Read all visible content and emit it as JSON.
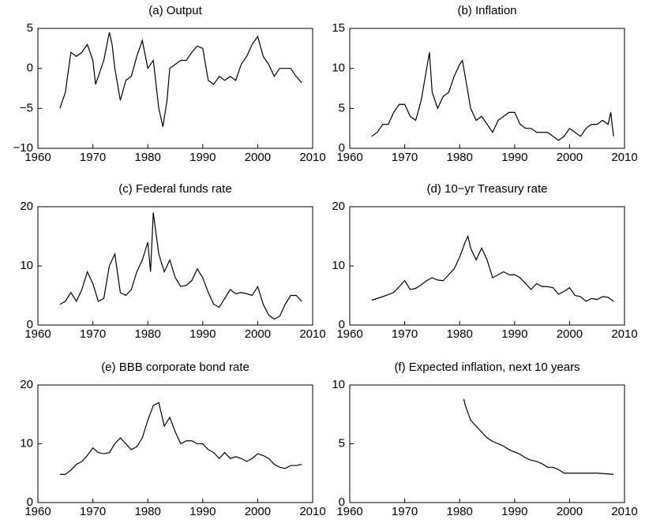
{
  "chart_data": [
    {
      "type": "line",
      "title": "(a) Output",
      "color": "#000000",
      "x": [
        1964,
        1964.5,
        1965,
        1966,
        1967,
        1968,
        1969,
        1970,
        1970.5,
        1971,
        1972,
        1973,
        1973.5,
        1974,
        1975,
        1976,
        1977,
        1978,
        1979,
        1980,
        1981,
        1982,
        1982.75,
        1983.5,
        1984,
        1985,
        1986,
        1987,
        1988,
        1989,
        1990,
        1991,
        1992,
        1993,
        1994,
        1995,
        1996,
        1997,
        1998,
        1999,
        2000,
        2001,
        2002,
        2003,
        2004,
        2005,
        2006,
        2007,
        2008
      ],
      "values": [
        -5,
        -4,
        -3,
        2,
        1.5,
        2,
        3,
        1,
        -2,
        -1,
        1,
        4.5,
        3,
        0,
        -4,
        -1.5,
        -1,
        1.5,
        3.5,
        0,
        1,
        -5,
        -7.3,
        -4,
        0,
        0.5,
        1,
        1,
        2,
        2.8,
        2.5,
        -1.5,
        -2,
        -1,
        -1.5,
        -1,
        -1.5,
        0.5,
        1.5,
        3,
        4,
        1.5,
        0.5,
        -1,
        0,
        0,
        0,
        -1,
        -1.8
      ],
      "xlim": [
        1960,
        2010
      ],
      "xticks": [
        1960,
        1970,
        1980,
        1990,
        2000,
        2010
      ],
      "ylim": [
        -10,
        5
      ],
      "yticks": [
        {
          "value": -10,
          "label": "−10"
        },
        {
          "value": -5,
          "label": "−5"
        },
        0,
        5
      ]
    },
    {
      "type": "line",
      "title": "(b) Inflation",
      "color": "#000000",
      "x": [
        1964,
        1965,
        1966,
        1967,
        1968,
        1969,
        1970,
        1971,
        1972,
        1973,
        1974,
        1974.5,
        1975,
        1976,
        1977,
        1978,
        1979,
        1980,
        1980.5,
        1981,
        1982,
        1983,
        1984,
        1985,
        1986,
        1987,
        1988,
        1989,
        1990,
        1991,
        1992,
        1993,
        1994,
        1995,
        1996,
        1997,
        1998,
        1999,
        2000,
        2001,
        2002,
        2003,
        2004,
        2005,
        2006,
        2007,
        2007.5,
        2008
      ],
      "values": [
        1.5,
        2,
        3,
        3,
        4.5,
        5.5,
        5.5,
        4,
        3.5,
        6,
        10,
        12,
        7,
        5,
        6.5,
        7,
        9,
        10.5,
        11,
        9,
        5,
        3.5,
        4,
        3,
        2,
        3.5,
        4,
        4.5,
        4.5,
        3,
        2.5,
        2.5,
        2,
        2,
        2,
        1.5,
        1,
        1.5,
        2.5,
        2,
        1.5,
        2.5,
        3,
        3,
        3.5,
        3,
        4.5,
        1.5
      ],
      "xlim": [
        1960,
        2010
      ],
      "xticks": [
        1960,
        1970,
        1980,
        1990,
        2000,
        2010
      ],
      "ylim": [
        0,
        15
      ],
      "yticks": [
        0,
        5,
        10,
        15
      ]
    },
    {
      "type": "line",
      "title": "(c) Federal funds rate",
      "color": "#000000",
      "x": [
        1964,
        1965,
        1966,
        1967,
        1968,
        1969,
        1970,
        1971,
        1972,
        1973,
        1974,
        1975,
        1976,
        1977,
        1978,
        1979,
        1980,
        1980.5,
        1981,
        1982,
        1983,
        1984,
        1985,
        1986,
        1987,
        1988,
        1989,
        1990,
        1991,
        1992,
        1993,
        1994,
        1995,
        1996,
        1997,
        1998,
        1999,
        2000,
        2001,
        2002,
        2003,
        2004,
        2005,
        2006,
        2007,
        2008
      ],
      "values": [
        3.5,
        4,
        5.5,
        4,
        6,
        9,
        7,
        4,
        4.5,
        10,
        12,
        5.5,
        5,
        6,
        9,
        11,
        14,
        9,
        19,
        12,
        9,
        11,
        8,
        6.5,
        6.7,
        7.5,
        9.5,
        8,
        5.5,
        3.5,
        3,
        4.5,
        6,
        5.3,
        5.5,
        5.3,
        5,
        6.5,
        3.5,
        1.7,
        1,
        1.5,
        3.5,
        5,
        5,
        4
      ],
      "xlim": [
        1960,
        2010
      ],
      "xticks": [
        1960,
        1970,
        1980,
        1990,
        2000,
        2010
      ],
      "ylim": [
        0,
        20
      ],
      "yticks": [
        0,
        10,
        20
      ]
    },
    {
      "type": "line",
      "title": "(d) 10−yr Treasury rate",
      "color": "#000000",
      "x": [
        1964,
        1966,
        1968,
        1969,
        1970,
        1971,
        1972,
        1973,
        1974,
        1975,
        1976,
        1977,
        1978,
        1979,
        1980,
        1981,
        1981.5,
        1982,
        1983,
        1984,
        1985,
        1986,
        1987,
        1988,
        1989,
        1990,
        1991,
        1992,
        1993,
        1994,
        1995,
        1996,
        1997,
        1998,
        1999,
        2000,
        2001,
        2002,
        2003,
        2004,
        2005,
        2006,
        2007,
        2008
      ],
      "values": [
        4.2,
        4.8,
        5.5,
        6.5,
        7.5,
        6,
        6.2,
        6.8,
        7.5,
        8,
        7.6,
        7.5,
        8.5,
        9.5,
        11.5,
        14,
        15,
        13,
        11,
        13,
        11,
        8,
        8.5,
        9,
        8.5,
        8.5,
        8,
        7,
        6,
        7,
        6.5,
        6.5,
        6.3,
        5.2,
        5.7,
        6.3,
        5,
        4.8,
        4,
        4.5,
        4.3,
        4.8,
        4.7,
        4
      ],
      "xlim": [
        1960,
        2010
      ],
      "xticks": [
        1960,
        1970,
        1980,
        1990,
        2000,
        2010
      ],
      "ylim": [
        0,
        20
      ],
      "yticks": [
        0,
        10,
        20
      ]
    },
    {
      "type": "line",
      "title": "(e) BBB corporate bond rate",
      "color": "#000000",
      "x": [
        1964,
        1965,
        1966,
        1967,
        1968,
        1969,
        1970,
        1971,
        1972,
        1973,
        1974,
        1975,
        1976,
        1977,
        1978,
        1979,
        1980,
        1981,
        1982,
        1983,
        1984,
        1985,
        1986,
        1987,
        1988,
        1989,
        1990,
        1991,
        1992,
        1993,
        1994,
        1995,
        1996,
        1997,
        1998,
        1999,
        2000,
        2001,
        2002,
        2003,
        2004,
        2005,
        2006,
        2007,
        2008
      ],
      "values": [
        4.8,
        4.8,
        5.5,
        6.5,
        7,
        8,
        9.3,
        8.5,
        8.3,
        8.5,
        10,
        11,
        10,
        9,
        9.5,
        11,
        14,
        16.5,
        17,
        13,
        14.5,
        12,
        10,
        10.5,
        10.5,
        10,
        10,
        9,
        8.5,
        7.5,
        8.5,
        7.5,
        7.8,
        7.5,
        7,
        7.5,
        8.3,
        8,
        7.5,
        6.5,
        6,
        5.8,
        6.3,
        6.3,
        6.5
      ],
      "xlim": [
        1960,
        2010
      ],
      "xticks": [
        1960,
        1970,
        1980,
        1990,
        2000,
        2010
      ],
      "ylim": [
        0,
        20
      ],
      "yticks": [
        0,
        10,
        20
      ]
    },
    {
      "type": "line",
      "title": "(f) Expected inflation, next 10 years",
      "color": "#000000",
      "x": [
        1980.75,
        1981,
        1982,
        1983,
        1984,
        1985,
        1986,
        1987,
        1988,
        1989,
        1990,
        1991,
        1992,
        1993,
        1994,
        1995,
        1996,
        1997,
        1998,
        1999,
        2000,
        2001,
        2003,
        2005,
        2008
      ],
      "values": [
        8.8,
        8.3,
        7,
        6.5,
        6,
        5.5,
        5.2,
        5,
        4.8,
        4.5,
        4.3,
        4.1,
        3.8,
        3.6,
        3.5,
        3.3,
        3,
        3,
        2.8,
        2.5,
        2.5,
        2.5,
        2.5,
        2.5,
        2.4
      ],
      "xlim": [
        1960,
        2010
      ],
      "xticks": [
        1960,
        1970,
        1980,
        1990,
        2000,
        2010
      ],
      "ylim": [
        0,
        10
      ],
      "yticks": [
        0,
        5,
        10
      ]
    }
  ]
}
